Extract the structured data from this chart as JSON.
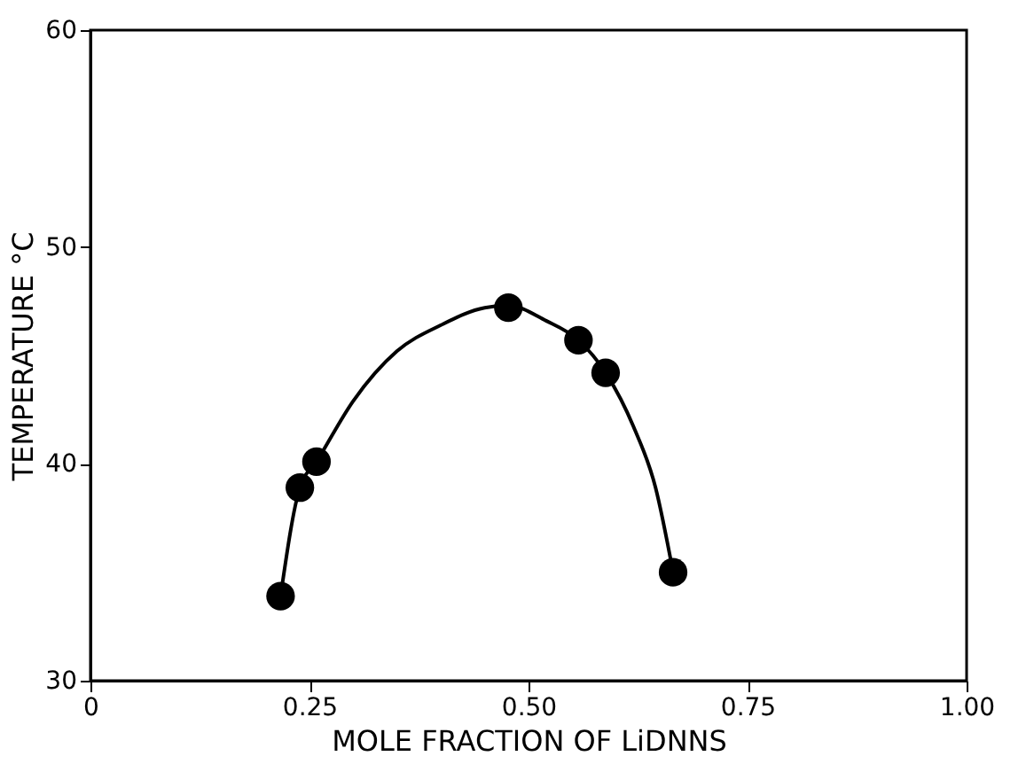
{
  "chart_data": {
    "type": "scatter",
    "xlabel": "MOLE FRACTION OF LiDNNS",
    "ylabel": "TEMPERATURE °C",
    "xlim": [
      0,
      1
    ],
    "ylim": [
      30,
      60
    ],
    "xticks": [
      0,
      0.25,
      {
        "value": 0.5,
        "label": "0.50"
      },
      0.75,
      {
        "value": 1,
        "label": "1.00"
      }
    ],
    "yticks": [
      30,
      40,
      50,
      60
    ],
    "grid": false,
    "series": [
      {
        "color": "#000000",
        "marker": "circle",
        "x": [
          0.217,
          0.239,
          0.258,
          0.477,
          0.557,
          0.588,
          0.665
        ],
        "values": [
          33.9,
          38.9,
          40.1,
          47.2,
          45.7,
          44.2,
          35.0
        ]
      },
      {
        "type": "line",
        "color": "#000000",
        "marker": "none",
        "line_style": "solid",
        "x": [
          0.217,
          0.239,
          0.258,
          0.3,
          0.35,
          0.4,
          0.45,
          0.477,
          0.52,
          0.557,
          0.588,
          0.62,
          0.645,
          0.665
        ],
        "values": [
          33.9,
          38.9,
          40.1,
          42.9,
          45.2,
          46.4,
          47.2,
          47.3,
          46.6,
          45.7,
          44.2,
          41.7,
          38.9,
          35.0
        ]
      }
    ]
  }
}
